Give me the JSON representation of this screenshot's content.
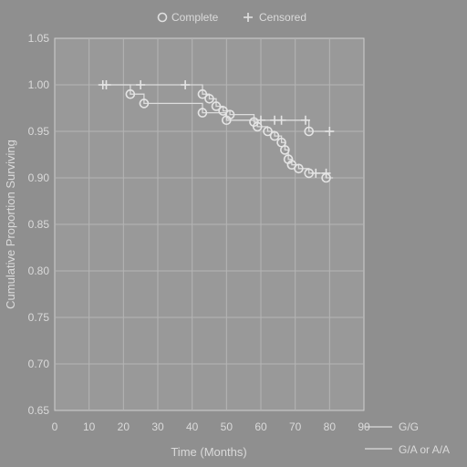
{
  "chart_data": {
    "type": "line",
    "title": "",
    "xlabel": "Time (Months)",
    "ylabel": "Cumulative Proportion Surviving",
    "xlim": [
      0,
      90
    ],
    "ylim": [
      0.65,
      1.05
    ],
    "xticks": [
      0,
      10,
      20,
      30,
      40,
      50,
      60,
      70,
      80,
      90
    ],
    "yticks": [
      0.65,
      0.7,
      0.75,
      0.8,
      0.85,
      0.9,
      0.95,
      1.0,
      1.05
    ],
    "xtick_labels": [
      "0",
      "10",
      "20",
      "30",
      "40",
      "50",
      "60",
      "70",
      "80",
      "90"
    ],
    "ytick_labels": [
      "0.65",
      "0.70",
      "0.75",
      "0.80",
      "0.85",
      "0.90",
      "0.95",
      "1.00",
      "1.05"
    ],
    "grid": true,
    "legend_markers": {
      "position": "top",
      "items": [
        {
          "symbol": "O",
          "label": "Complete"
        },
        {
          "symbol": "+",
          "label": "Censored"
        }
      ]
    },
    "series_legend_position": "bottom-right",
    "series": [
      {
        "name": "G/G",
        "step": [
          [
            14,
            1.0
          ],
          [
            43,
            1.0
          ],
          [
            43,
            0.99
          ],
          [
            45,
            0.99
          ],
          [
            45,
            0.985
          ],
          [
            47,
            0.985
          ],
          [
            47,
            0.977
          ],
          [
            49,
            0.977
          ],
          [
            49,
            0.972
          ],
          [
            51,
            0.972
          ],
          [
            51,
            0.968
          ],
          [
            58,
            0.968
          ],
          [
            58,
            0.96
          ],
          [
            59,
            0.96
          ],
          [
            59,
            0.955
          ],
          [
            62,
            0.955
          ],
          [
            62,
            0.95
          ],
          [
            64,
            0.95
          ],
          [
            64,
            0.945
          ],
          [
            66,
            0.945
          ],
          [
            66,
            0.938
          ],
          [
            67,
            0.938
          ],
          [
            67,
            0.93
          ],
          [
            68,
            0.93
          ],
          [
            68,
            0.92
          ],
          [
            69,
            0.92
          ],
          [
            69,
            0.914
          ],
          [
            71,
            0.914
          ],
          [
            71,
            0.91
          ],
          [
            74,
            0.91
          ],
          [
            74,
            0.905
          ],
          [
            79,
            0.905
          ],
          [
            79,
            0.9
          ],
          [
            81,
            0.9
          ]
        ],
        "complete": [
          [
            43,
            0.99
          ],
          [
            45,
            0.985
          ],
          [
            47,
            0.977
          ],
          [
            49,
            0.972
          ],
          [
            51,
            0.968
          ],
          [
            58,
            0.96
          ],
          [
            59,
            0.955
          ],
          [
            62,
            0.95
          ],
          [
            64,
            0.945
          ],
          [
            66,
            0.938
          ],
          [
            67,
            0.93
          ],
          [
            68,
            0.92
          ],
          [
            69,
            0.914
          ],
          [
            71,
            0.91
          ],
          [
            74,
            0.905
          ],
          [
            79,
            0.9
          ]
        ],
        "censored": [
          [
            14,
            1.0
          ],
          [
            25,
            1.0
          ],
          [
            38,
            1.0
          ],
          [
            76,
            0.905
          ],
          [
            79,
            0.905
          ]
        ]
      },
      {
        "name": "G/A or A/A",
        "step": [
          [
            14,
            1.0
          ],
          [
            22,
            1.0
          ],
          [
            22,
            0.99
          ],
          [
            26,
            0.99
          ],
          [
            26,
            0.98
          ],
          [
            43,
            0.98
          ],
          [
            43,
            0.97
          ],
          [
            50,
            0.97
          ],
          [
            50,
            0.962
          ],
          [
            74,
            0.962
          ],
          [
            74,
            0.95
          ],
          [
            81,
            0.95
          ]
        ],
        "complete": [
          [
            22,
            0.99
          ],
          [
            26,
            0.98
          ],
          [
            43,
            0.97
          ],
          [
            50,
            0.962
          ],
          [
            74,
            0.95
          ]
        ],
        "censored": [
          [
            15,
            1.0
          ],
          [
            60,
            0.962
          ],
          [
            64,
            0.962
          ],
          [
            66,
            0.962
          ],
          [
            73,
            0.962
          ],
          [
            80,
            0.95
          ]
        ]
      }
    ]
  }
}
